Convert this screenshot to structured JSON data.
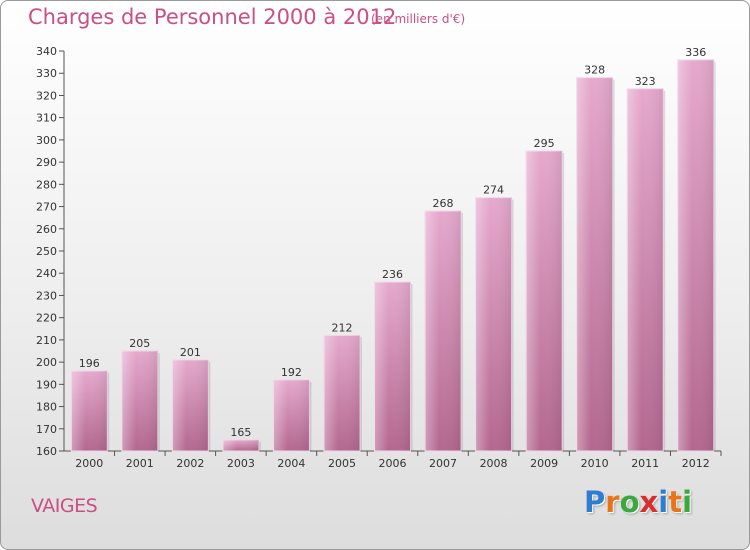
{
  "title": "Charges de Personnel 2000 à 2012",
  "subtitle": "(en milliers d'€)",
  "place": "VAIGES",
  "logo": {
    "letters": [
      "P",
      "r",
      "o",
      "x",
      "i",
      "t",
      "i"
    ],
    "colors": [
      "#2e7dd1",
      "#e8731a",
      "#3aa83a",
      "#d92e2e",
      "#2e7dd1",
      "#e8731a",
      "#3aa83a"
    ]
  },
  "colors": {
    "bar_top": "#e5a9cd",
    "bar_bottom": "#b3678f",
    "accent": "#cc4e84"
  },
  "chart_data": {
    "type": "bar",
    "title": "Charges de Personnel 2000 à 2012",
    "subtitle": "(en milliers d'€)",
    "categories": [
      "2000",
      "2001",
      "2002",
      "2003",
      "2004",
      "2005",
      "2006",
      "2007",
      "2008",
      "2009",
      "2010",
      "2011",
      "2012"
    ],
    "values": [
      196,
      205,
      201,
      165,
      192,
      212,
      236,
      268,
      274,
      295,
      328,
      323,
      336
    ],
    "ylim": [
      160,
      340
    ],
    "yticks": [
      160,
      170,
      180,
      190,
      200,
      210,
      220,
      230,
      240,
      250,
      260,
      270,
      280,
      290,
      300,
      310,
      320,
      330,
      340
    ],
    "grid": false,
    "legend": "none"
  }
}
